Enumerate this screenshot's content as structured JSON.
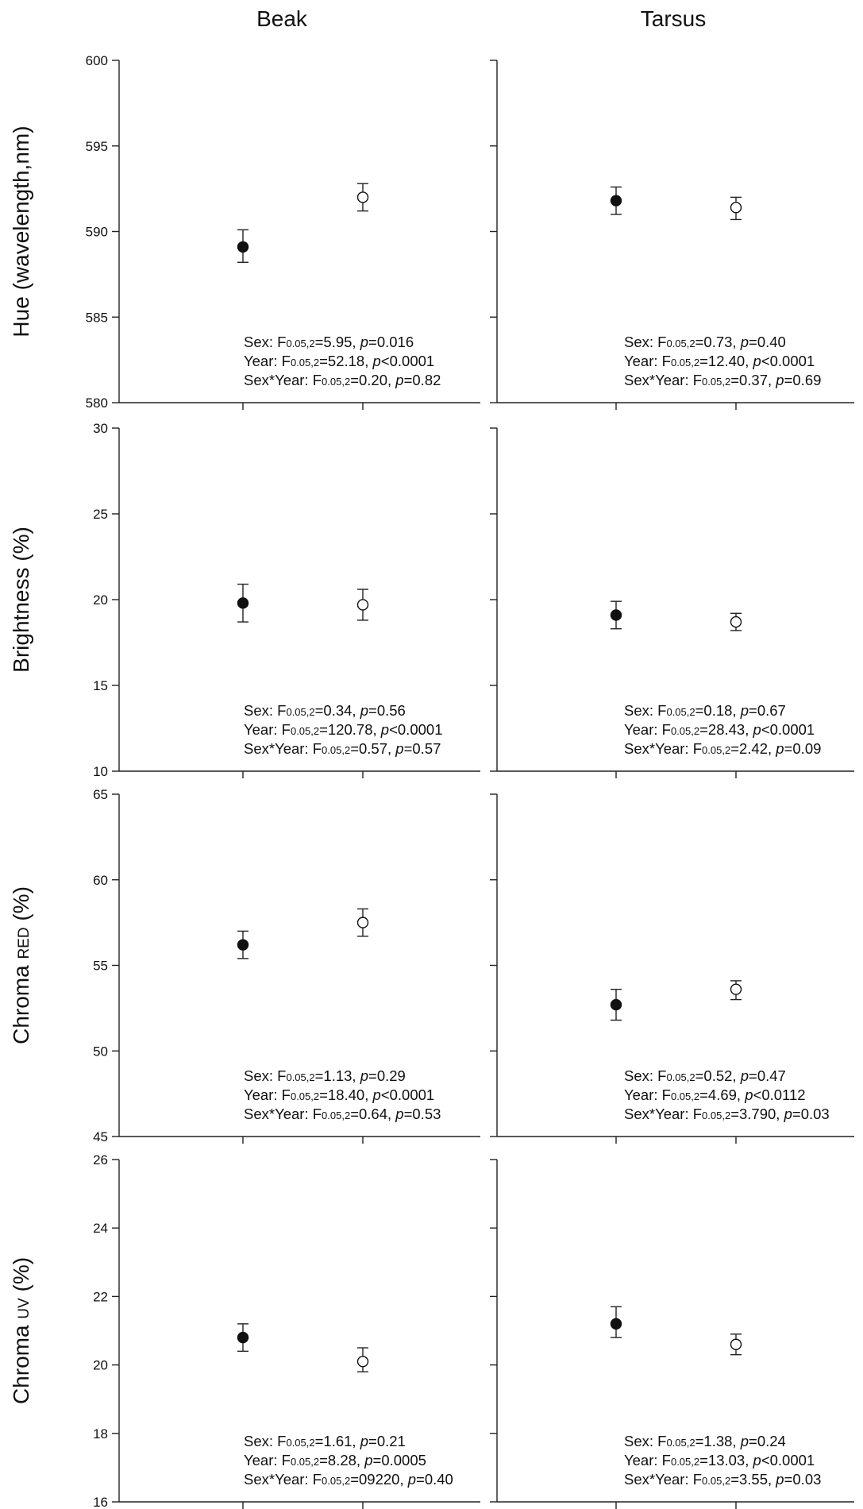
{
  "column_titles": [
    "Beak",
    "Tarsus"
  ],
  "chart_data": [
    {
      "type": "scatter",
      "ylabel": "Hue (wavelength,nm)",
      "ylabel_main": "Hue (wavelength,nm)",
      "ylabel_sub": "",
      "ylabel_tail": "",
      "ylim": [
        580,
        600
      ],
      "yticks": [
        "580",
        "585",
        "590",
        "595",
        "600"
      ],
      "panels": [
        {
          "title": "Beak",
          "points": [
            {
              "x": 1,
              "y": 589.1,
              "err_low": 588.2,
              "err_high": 590.1,
              "marker": "filled"
            },
            {
              "x": 2,
              "y": 592.0,
              "err_low": 591.2,
              "err_high": 592.8,
              "marker": "open"
            }
          ],
          "stats": [
            {
              "label": "Sex: F",
              "sub": "0.05,2",
              "value": "=5.95, ",
              "p": "p",
              "rest": "=0.016"
            },
            {
              "label": "Year: F",
              "sub": "0.05,2",
              "value": "=52.18, ",
              "p": "p",
              "rest": "<0.0001"
            },
            {
              "label": "Sex*Year:  F",
              "sub": "0.05,2",
              "value": "=0.20, ",
              "p": "p",
              "rest": "=0.82"
            }
          ]
        },
        {
          "title": "Tarsus",
          "points": [
            {
              "x": 1,
              "y": 591.8,
              "err_low": 591.0,
              "err_high": 592.6,
              "marker": "filled"
            },
            {
              "x": 2,
              "y": 591.4,
              "err_low": 590.7,
              "err_high": 592.0,
              "marker": "open"
            }
          ],
          "stats": [
            {
              "label": "Sex: F",
              "sub": "0.05,2",
              "value": "=0.73, ",
              "p": "p",
              "rest": "=0.40"
            },
            {
              "label": "Year: F",
              "sub": "0.05,2",
              "value": "=12.40, ",
              "p": "p",
              "rest": "<0.0001"
            },
            {
              "label": "Sex*Year:  F",
              "sub": "0.05,2",
              "value": "=0.37, ",
              "p": "p",
              "rest": "=0.69"
            }
          ]
        }
      ]
    },
    {
      "type": "scatter",
      "ylabel": "Brightness (%)",
      "ylabel_main": "Brightness (%)",
      "ylabel_sub": "",
      "ylabel_tail": "",
      "ylim": [
        10,
        30
      ],
      "yticks": [
        "10",
        "15",
        "20",
        "25",
        "30"
      ],
      "panels": [
        {
          "title": "Beak",
          "points": [
            {
              "x": 1,
              "y": 19.8,
              "err_low": 18.7,
              "err_high": 20.9,
              "marker": "filled"
            },
            {
              "x": 2,
              "y": 19.7,
              "err_low": 18.8,
              "err_high": 20.6,
              "marker": "open"
            }
          ],
          "stats": [
            {
              "label": "Sex: F",
              "sub": "0.05,2",
              "value": "=0.34, ",
              "p": "p",
              "rest": "=0.56"
            },
            {
              "label": "Year: F",
              "sub": "0.05,2",
              "value": "=120.78, ",
              "p": "p",
              "rest": "<0.0001"
            },
            {
              "label": "Sex*Year:  F",
              "sub": "0.05,2",
              "value": "=0.57, ",
              "p": "p",
              "rest": "=0.57"
            }
          ]
        },
        {
          "title": "Tarsus",
          "points": [
            {
              "x": 1,
              "y": 19.1,
              "err_low": 18.3,
              "err_high": 19.9,
              "marker": "filled"
            },
            {
              "x": 2,
              "y": 18.7,
              "err_low": 18.2,
              "err_high": 19.2,
              "marker": "open"
            }
          ],
          "stats": [
            {
              "label": "Sex: F",
              "sub": "0.05,2",
              "value": "=0.18, ",
              "p": "p",
              "rest": "=0.67"
            },
            {
              "label": "Year: F",
              "sub": "0.05,2",
              "value": "=28.43, ",
              "p": "p",
              "rest": "<0.0001"
            },
            {
              "label": "Sex*Year:  F",
              "sub": "0.05,2",
              "value": "=2.42, ",
              "p": "p",
              "rest": "=0.09"
            }
          ]
        }
      ]
    },
    {
      "type": "scatter",
      "ylabel": "Chroma RED (%)",
      "ylabel_main": "Chroma ",
      "ylabel_sub": "RED",
      "ylabel_tail": " (%)",
      "ylim": [
        45,
        65
      ],
      "yticks": [
        "45",
        "50",
        "55",
        "60",
        "65"
      ],
      "panels": [
        {
          "title": "Beak",
          "points": [
            {
              "x": 1,
              "y": 56.2,
              "err_low": 55.4,
              "err_high": 57.0,
              "marker": "filled"
            },
            {
              "x": 2,
              "y": 57.5,
              "err_low": 56.7,
              "err_high": 58.3,
              "marker": "open"
            }
          ],
          "stats": [
            {
              "label": "Sex: F",
              "sub": "0.05,2",
              "value": "=1.13, ",
              "p": "p",
              "rest": "=0.29"
            },
            {
              "label": "Year: F",
              "sub": "0.05,2",
              "value": "=18.40, ",
              "p": "p",
              "rest": "<0.0001"
            },
            {
              "label": "Sex*Year:  F",
              "sub": "0.05,2",
              "value": "=0.64, ",
              "p": "p",
              "rest": "=0.53"
            }
          ]
        },
        {
          "title": "Tarsus",
          "points": [
            {
              "x": 1,
              "y": 52.7,
              "err_low": 51.8,
              "err_high": 53.6,
              "marker": "filled"
            },
            {
              "x": 2,
              "y": 53.6,
              "err_low": 53.0,
              "err_high": 54.1,
              "marker": "open"
            }
          ],
          "stats": [
            {
              "label": "Sex: F",
              "sub": "0.05,2",
              "value": "=0.52, ",
              "p": "p",
              "rest": "=0.47"
            },
            {
              "label": "Year: F",
              "sub": "0.05,2",
              "value": "=4.69, ",
              "p": "p",
              "rest": "<0.0112"
            },
            {
              "label": "Sex*Year:  F",
              "sub": "0.05,2",
              "value": "=3.790, ",
              "p": "p",
              "rest": "=0.03"
            }
          ]
        }
      ]
    },
    {
      "type": "scatter",
      "ylabel": "Chroma UV (%)",
      "ylabel_main": "Chroma ",
      "ylabel_sub": "UV",
      "ylabel_tail": " (%)",
      "ylim": [
        16,
        26
      ],
      "yticks": [
        "16",
        "18",
        "20",
        "22",
        "24",
        "26"
      ],
      "panels": [
        {
          "title": "Beak",
          "points": [
            {
              "x": 1,
              "y": 20.8,
              "err_low": 20.4,
              "err_high": 21.2,
              "marker": "filled"
            },
            {
              "x": 2,
              "y": 20.1,
              "err_low": 19.8,
              "err_high": 20.5,
              "marker": "open"
            }
          ],
          "stats": [
            {
              "label": "Sex: F",
              "sub": "0.05,2",
              "value": "=1.61, ",
              "p": "p",
              "rest": "=0.21"
            },
            {
              "label": "Year: F",
              "sub": "0.05,2",
              "value": "=8.28, ",
              "p": "p",
              "rest": "=0.0005"
            },
            {
              "label": "Sex*Year:  F",
              "sub": "0.05,2",
              "value": "=09220, ",
              "p": "p",
              "rest": "=0.40"
            }
          ]
        },
        {
          "title": "Tarsus",
          "points": [
            {
              "x": 1,
              "y": 21.2,
              "err_low": 20.8,
              "err_high": 21.7,
              "marker": "filled"
            },
            {
              "x": 2,
              "y": 20.6,
              "err_low": 20.3,
              "err_high": 20.9,
              "marker": "open"
            }
          ],
          "stats": [
            {
              "label": "Sex: F",
              "sub": "0.05,2",
              "value": "=1.38, ",
              "p": "p",
              "rest": "=0.24"
            },
            {
              "label": "Year: F",
              "sub": "0.05,2",
              "value": "=13.03, ",
              "p": "p",
              "rest": "<0.0001"
            },
            {
              "label": "Sex*Year:  F",
              "sub": "0.05,2",
              "value": "=3.55, ",
              "p": "p",
              "rest": "=0.03"
            }
          ]
        }
      ]
    }
  ]
}
